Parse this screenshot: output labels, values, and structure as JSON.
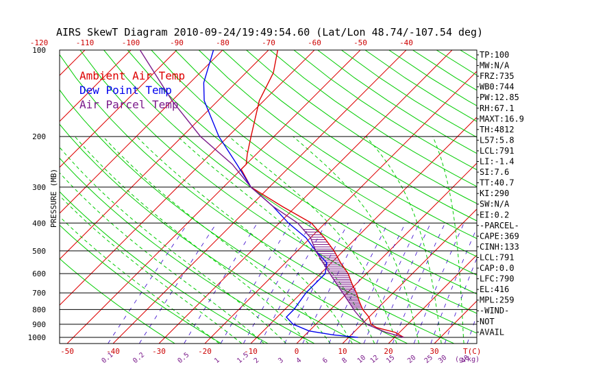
{
  "chart_data": {
    "type": "line",
    "title": "AIRS SkewT Diagram 2010-09-24/19:49:54.60 (Lat/Lon 48.74/-107.54 deg)",
    "ylabel": "PRESSURE (MB)",
    "xlabel": "T(C)",
    "mixing_ratio_unit": "(g/kg)",
    "pressure_ticks": [
      100,
      200,
      300,
      400,
      500,
      600,
      700,
      800,
      900,
      1000
    ],
    "top_temp_ticks": [
      -120,
      -110,
      -100,
      -90,
      -80,
      -70,
      -60,
      -50,
      -40
    ],
    "bottom_temp_ticks": [
      -50,
      -40,
      -30,
      -20,
      -10,
      0,
      10,
      20,
      30
    ],
    "mixing_ratio_ticks": [
      "0.1",
      "0.2",
      "0.5",
      "1",
      "1.5",
      "2",
      "3",
      "4",
      "6",
      "8",
      "10",
      "12",
      "15",
      "20",
      "25",
      "30",
      "40"
    ],
    "ylim": [
      1050,
      100
    ],
    "xlim_bottom": [
      -52,
      37
    ],
    "legend": [
      {
        "label": "Ambient Air Temp",
        "color": "#dd0000"
      },
      {
        "label": "Dew Point Temp",
        "color": "#0000ee"
      },
      {
        "label": "Air Parcel Temp",
        "color": "#7a1a8a"
      }
    ],
    "series": [
      {
        "name": "Ambient Air Temp",
        "color": "#dd0000",
        "points": [
          {
            "p": 1000,
            "t": 22
          },
          {
            "p": 960,
            "t": 19
          },
          {
            "p": 925,
            "t": 14
          },
          {
            "p": 900,
            "t": 12
          },
          {
            "p": 850,
            "t": 10
          },
          {
            "p": 800,
            "t": 7
          },
          {
            "p": 750,
            "t": 4.5
          },
          {
            "p": 700,
            "t": 2
          },
          {
            "p": 650,
            "t": -1
          },
          {
            "p": 600,
            "t": -4
          },
          {
            "p": 550,
            "t": -8
          },
          {
            "p": 500,
            "t": -12
          },
          {
            "p": 450,
            "t": -17
          },
          {
            "p": 400,
            "t": -23
          },
          {
            "p": 350,
            "t": -33
          },
          {
            "p": 300,
            "t": -44
          },
          {
            "p": 260,
            "t": -50
          },
          {
            "p": 250,
            "t": -50
          },
          {
            "p": 230,
            "t": -52
          },
          {
            "p": 200,
            "t": -55
          },
          {
            "p": 150,
            "t": -61
          },
          {
            "p": 120,
            "t": -64
          },
          {
            "p": 100,
            "t": -68
          }
        ]
      },
      {
        "name": "Dew Point Temp",
        "color": "#0000ee",
        "points": [
          {
            "p": 1000,
            "t": 12
          },
          {
            "p": 980,
            "t": 6
          },
          {
            "p": 950,
            "t": 0
          },
          {
            "p": 900,
            "t": -5
          },
          {
            "p": 850,
            "t": -8
          },
          {
            "p": 800,
            "t": -8
          },
          {
            "p": 700,
            "t": -9
          },
          {
            "p": 600,
            "t": -9
          },
          {
            "p": 550,
            "t": -11
          },
          {
            "p": 500,
            "t": -16
          },
          {
            "p": 450,
            "t": -21
          },
          {
            "p": 400,
            "t": -28
          },
          {
            "p": 350,
            "t": -35
          },
          {
            "p": 300,
            "t": -44
          },
          {
            "p": 250,
            "t": -52
          },
          {
            "p": 200,
            "t": -62
          },
          {
            "p": 150,
            "t": -73
          },
          {
            "p": 130,
            "t": -77
          },
          {
            "p": 100,
            "t": -82
          }
        ]
      },
      {
        "name": "Air Parcel Temp",
        "color": "#7a1a8a",
        "points": [
          {
            "p": 1000,
            "t": 22
          },
          {
            "p": 960,
            "t": 17
          },
          {
            "p": 900,
            "t": 11
          },
          {
            "p": 850,
            "t": 8
          },
          {
            "p": 800,
            "t": 5
          },
          {
            "p": 790,
            "t": 4.5
          },
          {
            "p": 700,
            "t": -1
          },
          {
            "p": 600,
            "t": -8
          },
          {
            "p": 500,
            "t": -16
          },
          {
            "p": 450,
            "t": -20
          },
          {
            "p": 400,
            "t": -26
          },
          {
            "p": 350,
            "t": -35
          },
          {
            "p": 300,
            "t": -44
          },
          {
            "p": 250,
            "t": -53
          },
          {
            "p": 200,
            "t": -66
          },
          {
            "p": 150,
            "t": -80
          },
          {
            "p": 100,
            "t": -98
          }
        ]
      }
    ],
    "cape_shading": {
      "p_bottom": 790,
      "p_top": 416
    }
  },
  "side_panel": [
    "TP:100",
    "MW:N/A",
    "FRZ:735",
    "WB0:744",
    "PW:12.85",
    "RH:67.1",
    "MAXT:16.9",
    "TH:4812",
    "L57:5.8",
    "LCL:791",
    "LI:-1.4",
    "SI:7.6",
    "TT:40.7",
    "KI:290",
    "SW:N/A",
    "EI:0.2",
    "-PARCEL-",
    "CAPE:369",
    "CINH:133",
    "LCL:791",
    "CAP:0.0",
    "LFC:790",
    "EL:416",
    "MPL:259",
    "-WIND-",
    "NOT",
    "AVAIL"
  ],
  "colors": {
    "isotherm": "#dd0000",
    "dry_adiabat": "#00cc00",
    "moist_adiabat": "#00cc00",
    "mixing_ratio": "#3300cc",
    "isobar": "#000000",
    "cape_hatch": "#7a1a8a"
  }
}
